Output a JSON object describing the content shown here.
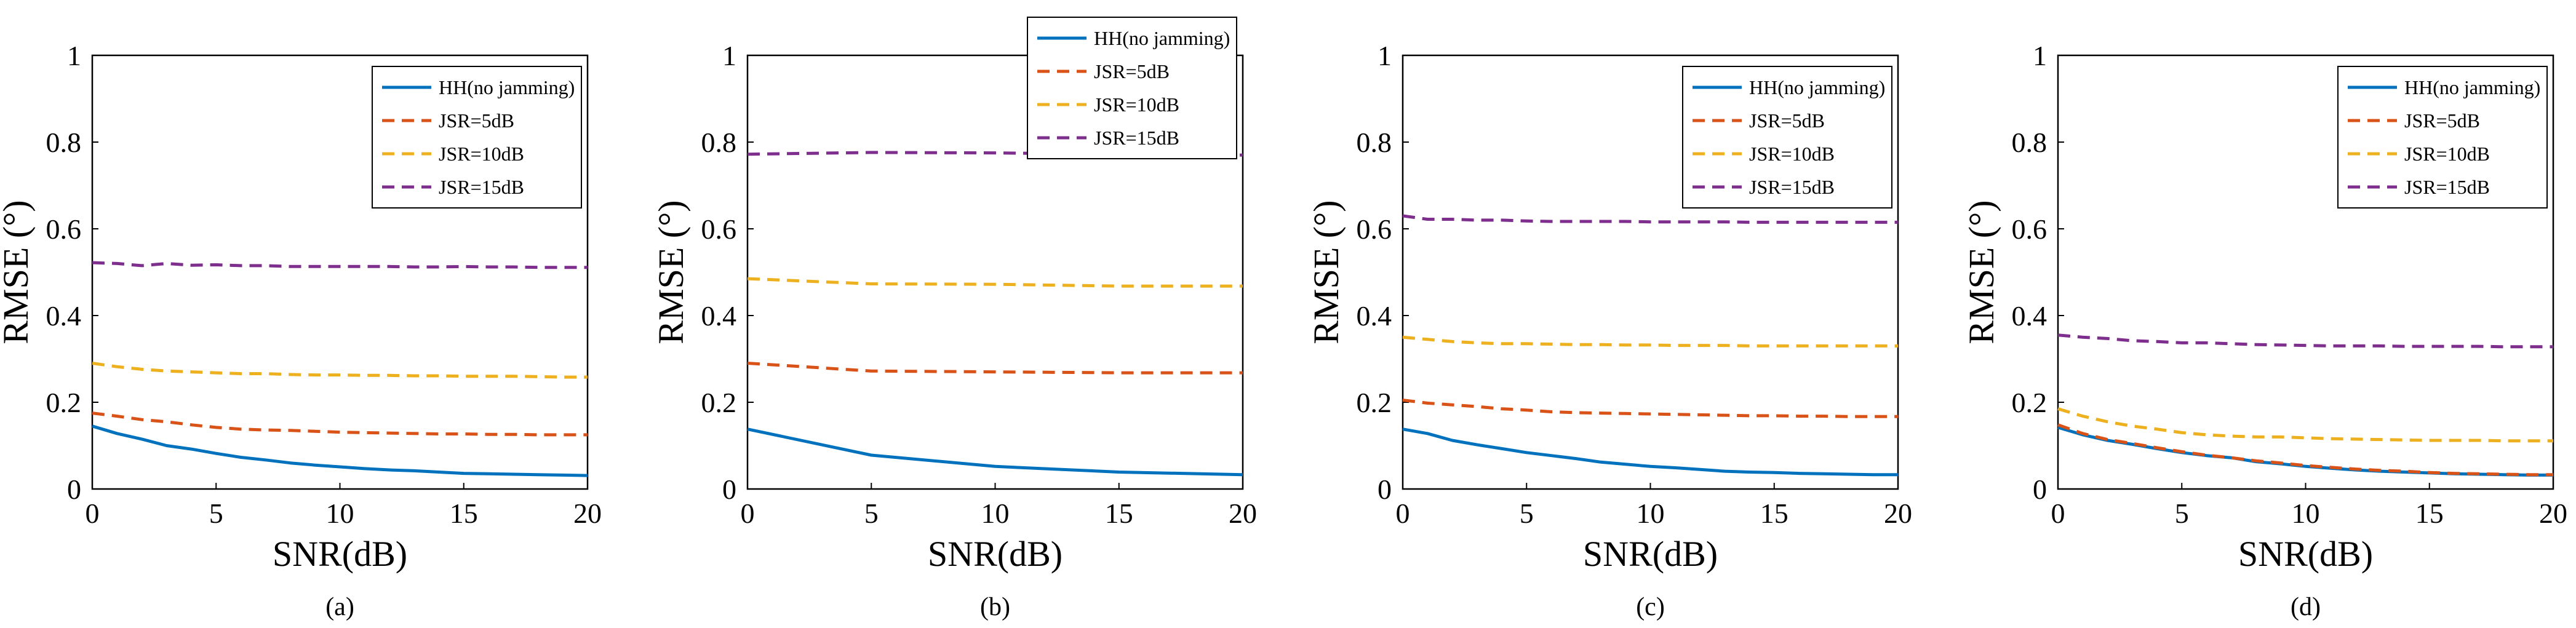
{
  "figure": {
    "background": "#ffffff"
  },
  "chart_data": [
    {
      "type": "line",
      "panel_label": "(a)",
      "xlabel": "SNR(dB)",
      "ylabel": "RMSE (°)",
      "xlim": [
        0,
        20
      ],
      "ylim": [
        0,
        1
      ],
      "xticks": [
        "0",
        "5",
        "10",
        "15",
        "20"
      ],
      "yticks": [
        "0",
        "0.2",
        "0.4",
        "0.6",
        "0.8",
        "1"
      ],
      "legend_position": "top-right",
      "x": [
        0,
        1,
        2,
        3,
        4,
        5,
        6,
        7,
        8,
        9,
        10,
        11,
        12,
        13,
        14,
        15,
        16,
        17,
        18,
        19,
        20
      ],
      "series": [
        {
          "name": "HH(no jamming)",
          "color": "#0072bd",
          "dash": "solid",
          "values": [
            0.145,
            0.128,
            0.115,
            0.1,
            0.092,
            0.082,
            0.073,
            0.067,
            0.06,
            0.055,
            0.051,
            0.047,
            0.044,
            0.042,
            0.039,
            0.036,
            0.035,
            0.034,
            0.033,
            0.032,
            0.031
          ]
        },
        {
          "name": "JSR=5dB",
          "color": "#d95319",
          "dash": "dashed",
          "values": [
            0.175,
            0.168,
            0.16,
            0.155,
            0.148,
            0.142,
            0.138,
            0.136,
            0.135,
            0.133,
            0.131,
            0.13,
            0.129,
            0.128,
            0.127,
            0.127,
            0.126,
            0.126,
            0.125,
            0.125,
            0.125
          ]
        },
        {
          "name": "JSR=10dB",
          "color": "#edb120",
          "dash": "dashed",
          "values": [
            0.29,
            0.282,
            0.276,
            0.272,
            0.27,
            0.268,
            0.266,
            0.266,
            0.264,
            0.263,
            0.263,
            0.262,
            0.262,
            0.261,
            0.261,
            0.26,
            0.26,
            0.26,
            0.259,
            0.258,
            0.258
          ]
        },
        {
          "name": "JSR=15dB",
          "color": "#7e2f8e",
          "dash": "dashed",
          "values": [
            0.522,
            0.52,
            0.515,
            0.52,
            0.516,
            0.517,
            0.515,
            0.515,
            0.513,
            0.513,
            0.513,
            0.513,
            0.513,
            0.512,
            0.512,
            0.513,
            0.512,
            0.512,
            0.511,
            0.511,
            0.511
          ]
        }
      ]
    },
    {
      "type": "line",
      "panel_label": "(b)",
      "xlabel": "SNR(dB)",
      "ylabel": "RMSE (°)",
      "xlim": [
        0,
        20
      ],
      "ylim": [
        0,
        1
      ],
      "xticks": [
        "0",
        "5",
        "10",
        "15",
        "20"
      ],
      "yticks": [
        "0",
        "0.2",
        "0.4",
        "0.6",
        "0.8",
        "1"
      ],
      "legend_position": "top-right",
      "x": [
        0,
        5,
        10,
        15,
        20
      ],
      "series": [
        {
          "name": "HH(no jamming)",
          "color": "#0072bd",
          "dash": "solid",
          "values": [
            0.138,
            0.078,
            0.052,
            0.039,
            0.033
          ]
        },
        {
          "name": "JSR=5dB",
          "color": "#d95319",
          "dash": "dashed",
          "values": [
            0.29,
            0.272,
            0.27,
            0.268,
            0.268
          ]
        },
        {
          "name": "JSR=10dB",
          "color": "#edb120",
          "dash": "dashed",
          "values": [
            0.485,
            0.473,
            0.472,
            0.468,
            0.468
          ]
        },
        {
          "name": "JSR=15dB",
          "color": "#7e2f8e",
          "dash": "dashed",
          "values": [
            0.772,
            0.776,
            0.775,
            0.772,
            0.77
          ]
        }
      ]
    },
    {
      "type": "line",
      "panel_label": "(c)",
      "xlabel": "SNR(dB)",
      "ylabel": "RMSE (°)",
      "xlim": [
        0,
        20
      ],
      "ylim": [
        0,
        1
      ],
      "xticks": [
        "0",
        "5",
        "10",
        "15",
        "20"
      ],
      "yticks": [
        "0",
        "0.2",
        "0.4",
        "0.6",
        "0.8",
        "1"
      ],
      "legend_position": "top-right",
      "x": [
        0,
        1,
        2,
        3,
        4,
        5,
        6,
        7,
        8,
        9,
        10,
        11,
        12,
        13,
        14,
        15,
        16,
        17,
        18,
        19,
        20
      ],
      "series": [
        {
          "name": "HH(no jamming)",
          "color": "#0072bd",
          "dash": "solid",
          "values": [
            0.138,
            0.128,
            0.112,
            0.102,
            0.093,
            0.084,
            0.077,
            0.07,
            0.062,
            0.057,
            0.052,
            0.049,
            0.045,
            0.041,
            0.039,
            0.038,
            0.036,
            0.035,
            0.034,
            0.033,
            0.033
          ]
        },
        {
          "name": "JSR=5dB",
          "color": "#d95319",
          "dash": "dashed",
          "values": [
            0.205,
            0.198,
            0.194,
            0.19,
            0.185,
            0.182,
            0.178,
            0.176,
            0.175,
            0.174,
            0.173,
            0.172,
            0.171,
            0.17,
            0.169,
            0.169,
            0.168,
            0.168,
            0.167,
            0.167,
            0.167
          ]
        },
        {
          "name": "JSR=10dB",
          "color": "#edb120",
          "dash": "dashed",
          "values": [
            0.35,
            0.345,
            0.34,
            0.337,
            0.335,
            0.335,
            0.334,
            0.333,
            0.333,
            0.332,
            0.332,
            0.331,
            0.331,
            0.331,
            0.33,
            0.33,
            0.33,
            0.33,
            0.33,
            0.33,
            0.33
          ]
        },
        {
          "name": "JSR=15dB",
          "color": "#7e2f8e",
          "dash": "dashed",
          "values": [
            0.63,
            0.622,
            0.622,
            0.62,
            0.62,
            0.618,
            0.617,
            0.617,
            0.617,
            0.617,
            0.616,
            0.616,
            0.616,
            0.616,
            0.615,
            0.615,
            0.615,
            0.615,
            0.615,
            0.615,
            0.615
          ]
        }
      ]
    },
    {
      "type": "line",
      "panel_label": "(d)",
      "xlabel": "SNR(dB)",
      "ylabel": "RMSE (°)",
      "xlim": [
        0,
        20
      ],
      "ylim": [
        0,
        1
      ],
      "xticks": [
        "0",
        "5",
        "10",
        "15",
        "20"
      ],
      "yticks": [
        "0",
        "0.2",
        "0.4",
        "0.6",
        "0.8",
        "1"
      ],
      "legend_position": "top-right",
      "x": [
        0,
        1,
        2,
        3,
        4,
        5,
        6,
        7,
        8,
        9,
        10,
        11,
        12,
        13,
        14,
        15,
        16,
        17,
        18,
        19,
        20
      ],
      "series": [
        {
          "name": "HH(no jamming)",
          "color": "#0072bd",
          "dash": "solid",
          "values": [
            0.142,
            0.125,
            0.112,
            0.103,
            0.093,
            0.084,
            0.077,
            0.072,
            0.063,
            0.058,
            0.052,
            0.048,
            0.044,
            0.041,
            0.039,
            0.037,
            0.035,
            0.034,
            0.033,
            0.032,
            0.032
          ]
        },
        {
          "name": "JSR=5dB",
          "color": "#d95319",
          "dash": "dashed",
          "values": [
            0.148,
            0.128,
            0.114,
            0.105,
            0.095,
            0.086,
            0.078,
            0.072,
            0.065,
            0.06,
            0.054,
            0.05,
            0.046,
            0.043,
            0.041,
            0.038,
            0.036,
            0.035,
            0.034,
            0.033,
            0.033
          ]
        },
        {
          "name": "JSR=10dB",
          "color": "#edb120",
          "dash": "dashed",
          "values": [
            0.185,
            0.168,
            0.155,
            0.145,
            0.138,
            0.13,
            0.125,
            0.122,
            0.12,
            0.12,
            0.118,
            0.116,
            0.115,
            0.114,
            0.113,
            0.112,
            0.112,
            0.112,
            0.111,
            0.111,
            0.111
          ]
        },
        {
          "name": "JSR=15dB",
          "color": "#7e2f8e",
          "dash": "dashed",
          "values": [
            0.355,
            0.35,
            0.347,
            0.342,
            0.34,
            0.337,
            0.337,
            0.335,
            0.333,
            0.332,
            0.331,
            0.33,
            0.33,
            0.33,
            0.329,
            0.329,
            0.329,
            0.329,
            0.328,
            0.328,
            0.328
          ]
        }
      ]
    }
  ]
}
